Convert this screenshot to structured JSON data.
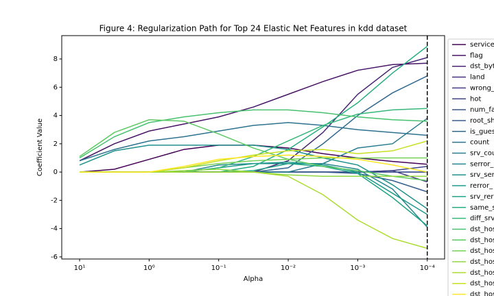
{
  "chart_data": {
    "type": "line",
    "title": "Figure 4: Regularization Path for Top 24 Elastic Net Features in kdd dataset",
    "xlabel": "Alpha",
    "ylabel": "Coefficient Value",
    "xscale": "log",
    "xlim": [
      18.07,
      5.63e-05
    ],
    "ylim": [
      -6.15,
      9.65
    ],
    "xticks": [
      {
        "value": 10,
        "label": "10¹"
      },
      {
        "value": 1,
        "label": "10⁰"
      },
      {
        "value": 0.1,
        "label": "10⁻¹"
      },
      {
        "value": 0.01,
        "label": "10⁻²"
      },
      {
        "value": 0.001,
        "label": "10⁻³"
      },
      {
        "value": 0.0001,
        "label": "10⁻⁴"
      }
    ],
    "yticks": [
      -6,
      -4,
      -2,
      0,
      2,
      4,
      6,
      8
    ],
    "vline": 0.0001,
    "legend": "outside-right",
    "x": [
      10,
      3.162,
      1,
      0.3162,
      0.1,
      0.03162,
      0.01,
      0.003162,
      0.001,
      0.0003162,
      0.0001
    ],
    "series": [
      {
        "name": "service",
        "color": "#440154",
        "values": [
          0,
          0.2,
          0.9,
          1.6,
          1.9,
          1.9,
          1.7,
          1.3,
          1.0,
          0.75,
          0.55
        ]
      },
      {
        "name": "flag",
        "color": "#471365",
        "values": [
          0.8,
          2.0,
          2.9,
          3.4,
          3.9,
          4.6,
          5.5,
          6.4,
          7.2,
          7.6,
          7.7
        ]
      },
      {
        "name": "dst_byt",
        "color": "#482374",
        "values": [
          0,
          0,
          0,
          0,
          0,
          0,
          0.8,
          2.8,
          5.5,
          7.4,
          8.1
        ]
      },
      {
        "name": "land",
        "color": "#472f7d",
        "values": [
          0,
          0,
          0,
          0,
          0,
          0,
          0,
          0,
          0,
          0,
          0
        ]
      },
      {
        "name": "wrong_",
        "color": "#443a83",
        "values": [
          0,
          0,
          0,
          0,
          0,
          0,
          0,
          0,
          0,
          0.1,
          -0.7
        ]
      },
      {
        "name": "hot",
        "color": "#404688",
        "values": [
          0,
          0,
          0,
          0,
          0,
          0,
          0,
          0,
          0,
          0.1,
          0.4
        ]
      },
      {
        "name": "num_fa",
        "color": "#3b528b",
        "values": [
          0,
          0,
          0,
          0,
          0,
          0,
          0,
          0,
          0,
          0,
          0
        ]
      },
      {
        "name": "root_sh",
        "color": "#365c8d",
        "values": [
          0,
          0,
          0,
          0,
          0,
          0,
          0,
          0,
          -0.1,
          -0.6,
          -1.4
        ]
      },
      {
        "name": "is_gues",
        "color": "#31688e",
        "values": [
          0,
          0,
          0,
          0,
          0,
          0,
          0.3,
          2.0,
          4.0,
          5.6,
          6.8
        ]
      },
      {
        "name": "count",
        "color": "#2c728e",
        "values": [
          0.8,
          1.6,
          2.2,
          2.5,
          2.9,
          3.3,
          3.5,
          3.3,
          3.0,
          2.8,
          2.6
        ]
      },
      {
        "name": "srv_cou",
        "color": "#287c8e",
        "values": [
          0,
          0,
          0,
          0,
          0,
          0,
          0,
          0.6,
          1.7,
          2.0,
          3.8
        ]
      },
      {
        "name": "serror_",
        "color": "#24868e",
        "values": [
          0,
          0,
          0,
          0,
          0.5,
          0.6,
          0.6,
          0.6,
          0.2,
          -1.2,
          -3.9
        ]
      },
      {
        "name": "srv_ser",
        "color": "#21918c",
        "values": [
          0.5,
          1.5,
          1.9,
          1.9,
          1.9,
          1.9,
          1.6,
          1.0,
          0.5,
          -0.9,
          -2.6
        ]
      },
      {
        "name": "rerror_",
        "color": "#1f9a8a",
        "values": [
          0,
          0,
          0,
          0,
          0.3,
          0.6,
          0.7,
          0.5,
          0,
          -1.5,
          -3.0
        ]
      },
      {
        "name": "srv_rer",
        "color": "#20a486",
        "values": [
          0,
          0,
          0,
          0,
          0,
          0.1,
          0.6,
          0.4,
          -0.1,
          -1.8,
          -3.8
        ]
      },
      {
        "name": "same_s",
        "color": "#27ad81",
        "values": [
          0,
          0,
          0,
          0,
          0,
          0.4,
          1.6,
          3.2,
          4.9,
          7.0,
          8.9
        ]
      },
      {
        "name": "diff_srv",
        "color": "#35b779",
        "values": [
          0,
          0,
          0,
          0,
          0.3,
          1.1,
          2.2,
          3.3,
          4.1,
          4.4,
          4.5
        ]
      },
      {
        "name": "dst_hos",
        "color": "#47c16e",
        "values": [
          1.0,
          2.5,
          3.5,
          3.9,
          4.2,
          4.4,
          4.4,
          4.2,
          3.9,
          3.7,
          3.6
        ]
      },
      {
        "name": "dst_hos",
        "color": "#5ec962",
        "values": [
          1.1,
          2.8,
          3.7,
          3.6,
          2.7,
          1.7,
          0.9,
          0.4,
          0.1,
          -0.3,
          -0.6
        ]
      },
      {
        "name": "dst_hos",
        "color": "#75d054",
        "values": [
          0,
          0,
          0,
          0.3,
          0.6,
          0.8,
          0.9,
          1.0,
          1.0,
          1.0,
          1.0
        ]
      },
      {
        "name": "dst_hos",
        "color": "#90d743",
        "values": [
          0,
          0,
          0,
          0.1,
          0.2,
          0,
          -0.2,
          -0.3,
          -0.3,
          -0.3,
          -0.3
        ]
      },
      {
        "name": "dst_hos",
        "color": "#addc30",
        "values": [
          0,
          0,
          0,
          0,
          0,
          0,
          -0.3,
          -1.6,
          -3.4,
          -4.7,
          -5.4
        ]
      },
      {
        "name": "dst_hos",
        "color": "#c8e020",
        "values": [
          0,
          0,
          0,
          0.3,
          0.8,
          1.2,
          1.5,
          1.6,
          1.3,
          1.5,
          2.2
        ]
      },
      {
        "name": "dst_hos",
        "color": "#fde725",
        "values": [
          0,
          0,
          0,
          0.4,
          0.9,
          1.1,
          1.2,
          1.1,
          0.9,
          0.5,
          0
        ]
      }
    ]
  }
}
